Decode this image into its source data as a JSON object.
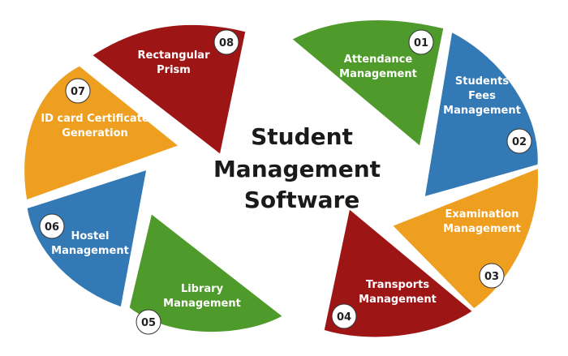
{
  "diagram": {
    "title_lines": [
      "Student",
      "Management",
      "Software"
    ],
    "segments": [
      {
        "number": "01",
        "lines": [
          "Attendance",
          "Management"
        ],
        "color": "#4E9A2A"
      },
      {
        "number": "02",
        "lines": [
          "Students",
          "Fees",
          "Management"
        ],
        "color": "#3279B5"
      },
      {
        "number": "03",
        "lines": [
          "Examination",
          "Management"
        ],
        "color": "#EE9F20"
      },
      {
        "number": "04",
        "lines": [
          "Transports",
          "Management"
        ],
        "color": "#9E1516"
      },
      {
        "number": "05",
        "lines": [
          "Library",
          "Management"
        ],
        "color": "#4E9A2A"
      },
      {
        "number": "06",
        "lines": [
          "Hostel",
          "Management"
        ],
        "color": "#3279B5"
      },
      {
        "number": "07",
        "lines": [
          "ID card Certificate",
          "Generation"
        ],
        "color": "#EE9F20"
      },
      {
        "number": "08",
        "lines": [
          "Rectangular",
          "Prism"
        ],
        "color": "#9E1516"
      }
    ]
  }
}
